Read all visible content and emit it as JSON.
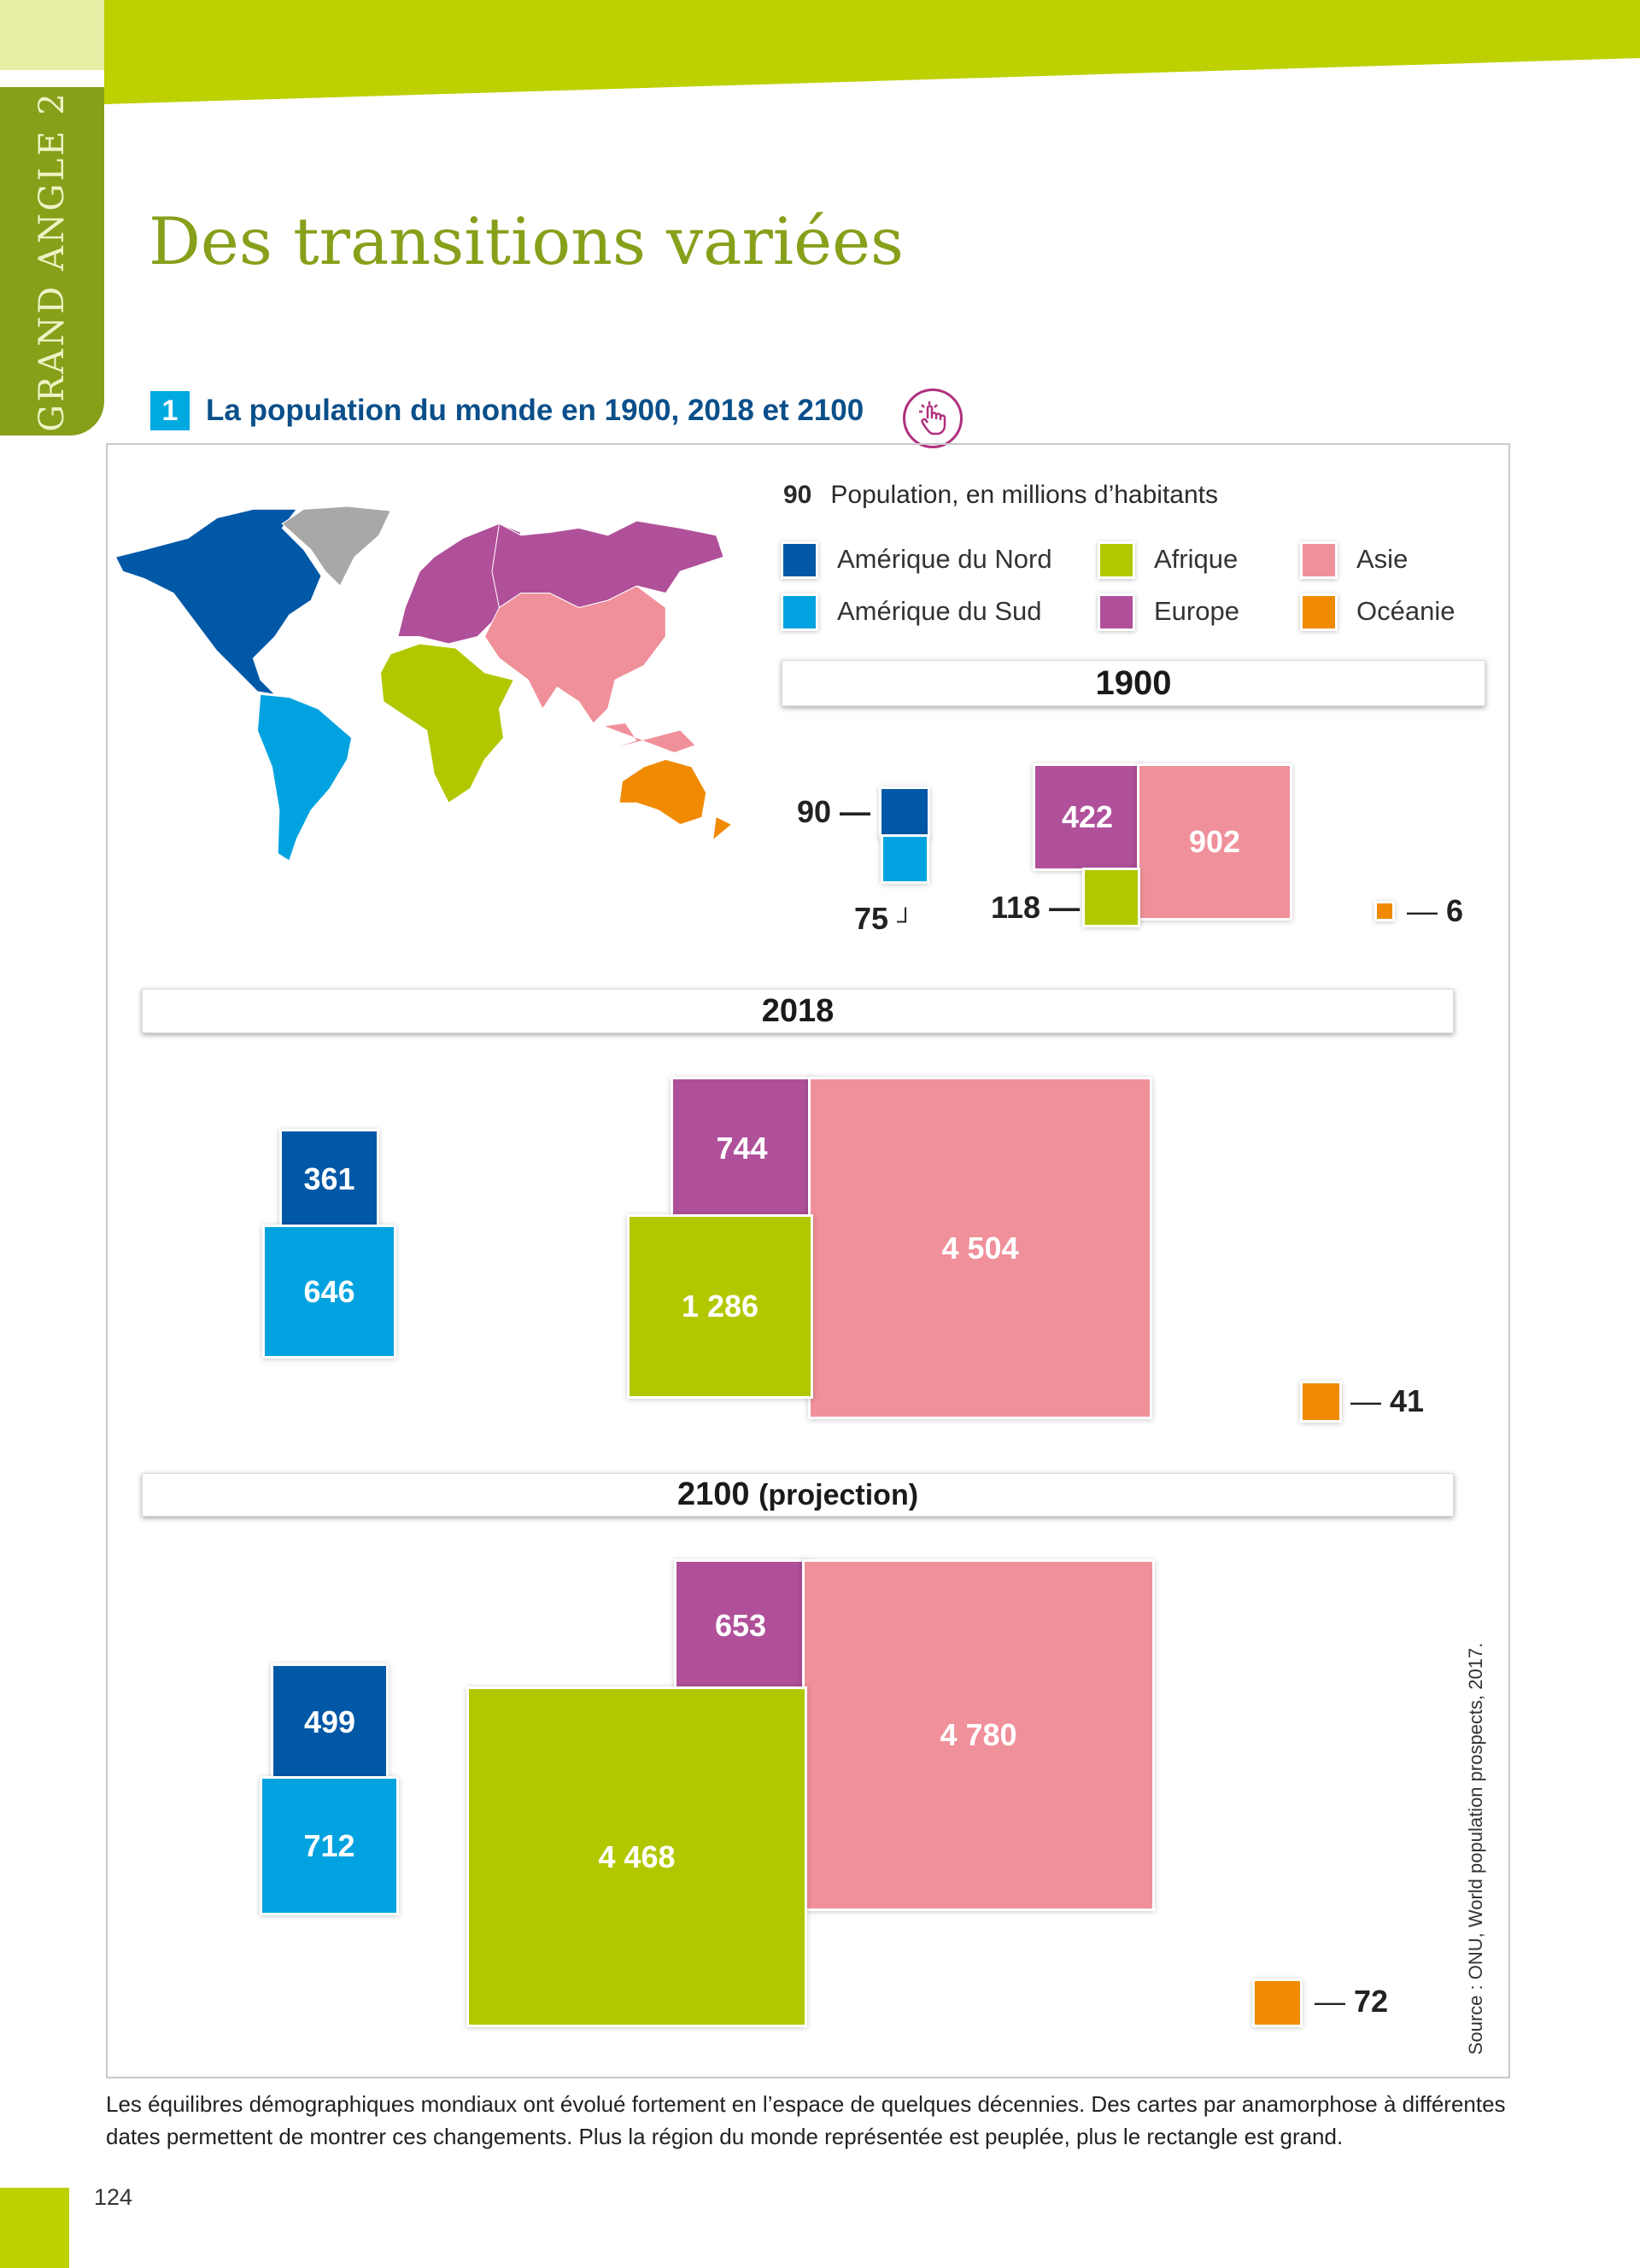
{
  "side_tab": "GRAND ANGLE 2",
  "title": "Des transitions variées",
  "document": {
    "number": "1",
    "title": "La population du monde en 1900, 2018 et 2100",
    "icon": "hand-pointer-icon"
  },
  "legend": {
    "sample_value": "90",
    "unit_label": "Population, en millions d’habitants",
    "items": [
      {
        "label": "Amérique du Nord",
        "color": "#0058a6"
      },
      {
        "label": "Amérique du Sud",
        "color": "#00a3e0"
      },
      {
        "label": "Afrique",
        "color": "#b1c800"
      },
      {
        "label": "Europe",
        "color": "#b0509a"
      },
      {
        "label": "Asie",
        "color": "#f0909a"
      },
      {
        "label": "Océanie",
        "color": "#f08a00"
      }
    ]
  },
  "years": [
    {
      "label": "1900",
      "suffix": "",
      "values": {
        "amerique_nord": "90",
        "amerique_sud": "75",
        "afrique": "118",
        "europe": "422",
        "asie": "902",
        "oceanie": "6"
      }
    },
    {
      "label": "2018",
      "suffix": "",
      "values": {
        "amerique_nord": "361",
        "amerique_sud": "646",
        "afrique": "1 286",
        "europe": "744",
        "asie": "4 504",
        "oceanie": "41"
      }
    },
    {
      "label": "2100",
      "suffix": "(projection)",
      "values": {
        "amerique_nord": "499",
        "amerique_sud": "712",
        "afrique": "4 468",
        "europe": "653",
        "asie": "4 780",
        "oceanie": "72"
      }
    }
  ],
  "source": "Source : ONU, World population prospects, 2017.",
  "caption": "Les équilibres démographiques mondiaux ont évolué fortement en l’espace de quelques décennies. Des cartes par anamorphose à différentes dates permettent de montrer ces changements. Plus la région du monde représentée est peuplée, plus le rectangle est grand.",
  "page_number": "124"
}
